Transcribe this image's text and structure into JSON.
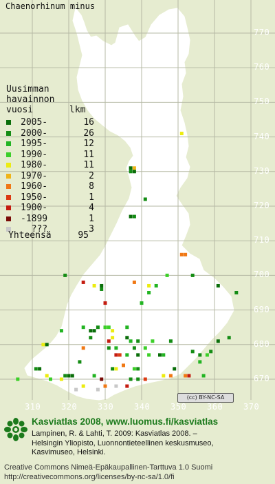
{
  "title": "Chaenorhinum minus",
  "legend": {
    "heading": [
      "Uusimman",
      "havainnon",
      "vuosi"
    ],
    "count_header": "lkm",
    "items": [
      {
        "label": "2005-",
        "count": "16",
        "color": "#0a6e0a"
      },
      {
        "label": "2000-",
        "count": "26",
        "color": "#148c14"
      },
      {
        "label": "1995-",
        "count": "12",
        "color": "#22b422"
      },
      {
        "label": "1990-",
        "count": "11",
        "color": "#3ccf28"
      },
      {
        "label": "1980-",
        "count": "11",
        "color": "#ecec10"
      },
      {
        "label": "1970-",
        "count": "2",
        "color": "#f0b418"
      },
      {
        "label": "1960-",
        "count": "8",
        "color": "#f07814"
      },
      {
        "label": "1950-",
        "count": "1",
        "color": "#dc3a12"
      },
      {
        "label": "1900-",
        "count": "4",
        "color": "#c41c10"
      },
      {
        "label": "-1899",
        "count": "1",
        "color": "#7a0c08"
      },
      {
        "label": "???",
        "count": "3",
        "color": "#c8c8c8"
      }
    ],
    "total_label": "Yhteensä",
    "total_count": "95"
  },
  "axes": {
    "y_ticks": [
      "770",
      "760",
      "750",
      "740",
      "730",
      "720",
      "710",
      "700",
      "690",
      "680",
      "670"
    ],
    "x_ticks": [
      "310",
      "320",
      "330",
      "340",
      "350",
      "360",
      "370"
    ]
  },
  "cc_badge": "(cc) BY-NC-SA",
  "footer": {
    "brand": "Kasviatlas 2008, www.luomus.fi/kasviatlas",
    "citation": [
      "Lampinen, R. & Lahti, T. 2009: Kasviatlas 2008. –",
      "Helsingin Yliopisto, Luonnontieteellinen keskusmuseo,",
      "Kasvimuseo, Helsinki."
    ],
    "license": [
      "Creative Commons Nimeä-Epäkaupallinen-Tarttuva 1.0 Suomi",
      "http://creativecommons.org/licenses/by-nc-sa/1.0/fi"
    ]
  },
  "occurrences": [
    {
      "e": 351,
      "n": 741,
      "c": 4
    },
    {
      "e": 337,
      "n": 731,
      "c": 0
    },
    {
      "e": 338,
      "n": 731,
      "c": 5
    },
    {
      "e": 337,
      "n": 730,
      "c": 1
    },
    {
      "e": 338,
      "n": 730,
      "c": 0
    },
    {
      "e": 341,
      "n": 722,
      "c": 1
    },
    {
      "e": 337,
      "n": 717,
      "c": 0
    },
    {
      "e": 338,
      "n": 717,
      "c": 1
    },
    {
      "e": 351,
      "n": 706,
      "c": 6
    },
    {
      "e": 352,
      "n": 706,
      "c": 6
    },
    {
      "e": 319,
      "n": 700,
      "c": 1
    },
    {
      "e": 347,
      "n": 700,
      "c": 3
    },
    {
      "e": 354,
      "n": 700,
      "c": 1
    },
    {
      "e": 324,
      "n": 698,
      "c": 8
    },
    {
      "e": 338,
      "n": 698,
      "c": 6
    },
    {
      "e": 327,
      "n": 697,
      "c": 4
    },
    {
      "e": 329,
      "n": 697,
      "c": 0
    },
    {
      "e": 329,
      "n": 696,
      "c": 1
    },
    {
      "e": 342,
      "n": 697,
      "c": 4
    },
    {
      "e": 344,
      "n": 697,
      "c": 2
    },
    {
      "e": 361,
      "n": 697,
      "c": 0
    },
    {
      "e": 366,
      "n": 695,
      "c": 1
    },
    {
      "e": 342,
      "n": 695,
      "c": 2
    },
    {
      "e": 330,
      "n": 692,
      "c": 8
    },
    {
      "e": 340,
      "n": 692,
      "c": 2
    },
    {
      "e": 324,
      "n": 685,
      "c": 2
    },
    {
      "e": 330,
      "n": 685,
      "c": 3
    },
    {
      "e": 332,
      "n": 684,
      "c": 4
    },
    {
      "e": 326,
      "n": 684,
      "c": 0
    },
    {
      "e": 327,
      "n": 684,
      "c": 0
    },
    {
      "e": 328,
      "n": 685,
      "c": 1
    },
    {
      "e": 331,
      "n": 685,
      "c": 3
    },
    {
      "e": 336,
      "n": 685,
      "c": 2
    },
    {
      "e": 318,
      "n": 684,
      "c": 2
    },
    {
      "e": 326,
      "n": 682,
      "c": 1
    },
    {
      "e": 331,
      "n": 681,
      "c": 8
    },
    {
      "e": 332,
      "n": 682,
      "c": 4
    },
    {
      "e": 336,
      "n": 682,
      "c": 0
    },
    {
      "e": 337,
      "n": 681,
      "c": 2
    },
    {
      "e": 339,
      "n": 681,
      "c": 1
    },
    {
      "e": 343,
      "n": 681,
      "c": 3
    },
    {
      "e": 348,
      "n": 681,
      "c": 1
    },
    {
      "e": 361,
      "n": 681,
      "c": 0
    },
    {
      "e": 364,
      "n": 682,
      "c": 1
    },
    {
      "e": 313,
      "n": 680,
      "c": 4
    },
    {
      "e": 314,
      "n": 680,
      "c": 0
    },
    {
      "e": 324,
      "n": 679,
      "c": 6
    },
    {
      "e": 331,
      "n": 679,
      "c": 1
    },
    {
      "e": 333,
      "n": 679,
      "c": 2
    },
    {
      "e": 338,
      "n": 679,
      "c": 1
    },
    {
      "e": 341,
      "n": 679,
      "c": 3
    },
    {
      "e": 354,
      "n": 678,
      "c": 1
    },
    {
      "e": 359,
      "n": 678,
      "c": 1
    },
    {
      "e": 333,
      "n": 677,
      "c": 8
    },
    {
      "e": 334,
      "n": 677,
      "c": 7
    },
    {
      "e": 336,
      "n": 677,
      "c": 2
    },
    {
      "e": 339,
      "n": 677,
      "c": 0
    },
    {
      "e": 342,
      "n": 677,
      "c": 3
    },
    {
      "e": 345,
      "n": 677,
      "c": 0
    },
    {
      "e": 346,
      "n": 677,
      "c": 2
    },
    {
      "e": 356,
      "n": 677,
      "c": 1
    },
    {
      "e": 358,
      "n": 677,
      "c": 3
    },
    {
      "e": 323,
      "n": 675,
      "c": 1
    },
    {
      "e": 356,
      "n": 675,
      "c": 2
    },
    {
      "e": 335,
      "n": 674,
      "c": 6
    },
    {
      "e": 311,
      "n": 673,
      "c": 1
    },
    {
      "e": 312,
      "n": 673,
      "c": 0
    },
    {
      "e": 332,
      "n": 673,
      "c": 1
    },
    {
      "e": 333,
      "n": 673,
      "c": 4
    },
    {
      "e": 338,
      "n": 673,
      "c": 3
    },
    {
      "e": 339,
      "n": 673,
      "c": 1
    },
    {
      "e": 349,
      "n": 673,
      "c": 0
    },
    {
      "e": 314,
      "n": 671,
      "c": 4
    },
    {
      "e": 319,
      "n": 671,
      "c": 1
    },
    {
      "e": 320,
      "n": 671,
      "c": 0
    },
    {
      "e": 321,
      "n": 671,
      "c": 0
    },
    {
      "e": 327,
      "n": 671,
      "c": 2
    },
    {
      "e": 346,
      "n": 671,
      "c": 4
    },
    {
      "e": 348,
      "n": 671,
      "c": 6
    },
    {
      "e": 352,
      "n": 671,
      "c": 6
    },
    {
      "e": 353,
      "n": 671,
      "c": 8
    },
    {
      "e": 357,
      "n": 671,
      "c": 2
    },
    {
      "e": 306,
      "n": 670,
      "c": 3
    },
    {
      "e": 315,
      "n": 670,
      "c": 3
    },
    {
      "e": 318,
      "n": 670,
      "c": 4
    },
    {
      "e": 329,
      "n": 670,
      "c": 9
    },
    {
      "e": 337,
      "n": 670,
      "c": 1
    },
    {
      "e": 339,
      "n": 670,
      "c": 1
    },
    {
      "e": 341,
      "n": 670,
      "c": 7
    },
    {
      "e": 324,
      "n": 668,
      "c": 4
    },
    {
      "e": 330,
      "n": 668,
      "c": 6
    },
    {
      "e": 333,
      "n": 668,
      "c": 10
    },
    {
      "e": 336,
      "n": 668,
      "c": 8
    },
    {
      "e": 322,
      "n": 667,
      "c": 10
    },
    {
      "e": 328,
      "n": 667,
      "c": 10
    }
  ]
}
